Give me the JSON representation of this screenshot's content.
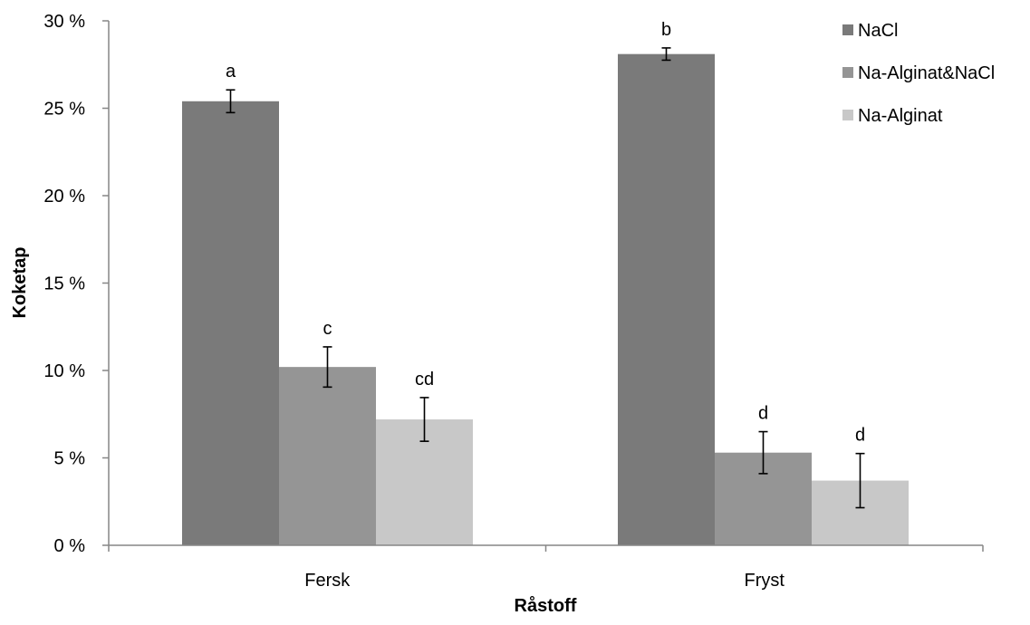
{
  "chart_data": {
    "type": "bar",
    "title": "",
    "xlabel": "Råstoff",
    "ylabel": "Koketap",
    "categories": [
      "Fersk",
      "Fryst"
    ],
    "ylim": [
      0,
      30
    ],
    "yticks": [
      0,
      5,
      10,
      15,
      20,
      25,
      30
    ],
    "ytick_labels": [
      "0 %",
      "5 %",
      "10 %",
      "15 %",
      "20 %",
      "25 %",
      "30 %"
    ],
    "legend_position": "top-right",
    "grid": false,
    "series": [
      {
        "name": "NaCl",
        "color": "#7a7a7a",
        "values": [
          25.4,
          28.1
        ],
        "errors": [
          0.65,
          0.35
        ],
        "labels": [
          "a",
          "b"
        ]
      },
      {
        "name": "Na-Alginat&NaCl",
        "color": "#959595",
        "values": [
          10.2,
          5.3
        ],
        "errors": [
          1.15,
          1.2
        ],
        "labels": [
          "c",
          "d"
        ]
      },
      {
        "name": "Na-Alginat",
        "color": "#c8c8c8",
        "values": [
          7.2,
          3.7
        ],
        "errors": [
          1.25,
          1.55
        ],
        "labels": [
          "cd",
          "d"
        ]
      }
    ]
  }
}
